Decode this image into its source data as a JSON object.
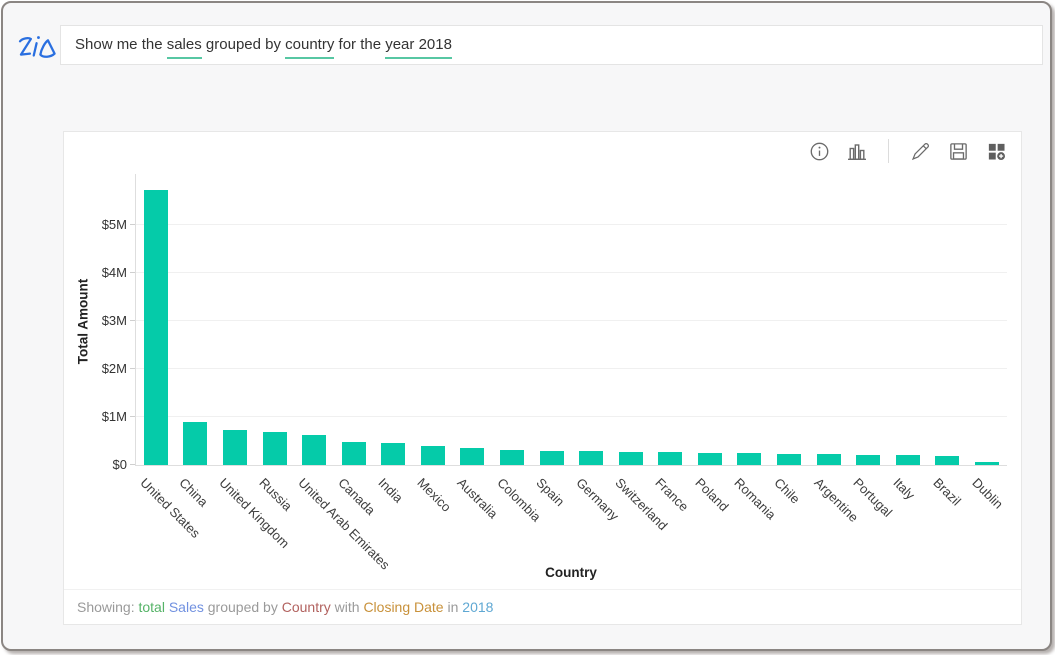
{
  "query_bar": {
    "logo_name": "Zia",
    "segments": [
      {
        "text": "Show me the ",
        "underlined": false
      },
      {
        "text": "sales",
        "underlined": true
      },
      {
        "text": " grouped by ",
        "underlined": false
      },
      {
        "text": "country",
        "underlined": true
      },
      {
        "text": " for the ",
        "underlined": false
      },
      {
        "text": "year 2018",
        "underlined": true
      }
    ]
  },
  "toolbar": {
    "icons": [
      "info-icon",
      "bar-chart-icon",
      "divider",
      "edit-pencil-icon",
      "save-icon",
      "add-to-dashboard-icon"
    ]
  },
  "chart_data": {
    "type": "bar",
    "title": "",
    "xlabel": "Country",
    "ylabel": "Total Amount",
    "bar_color": "#05cba9",
    "grid": true,
    "ylim": [
      0,
      6080000
    ],
    "y_ticks": [
      "$0",
      "$1M",
      "$2M",
      "$3M",
      "$4M",
      "$5M"
    ],
    "categories": [
      "United States",
      "China",
      "United Kingdom",
      "Russia",
      "United Arab Emirates",
      "Canada",
      "India",
      "Mexico",
      "Australia",
      "Colombia",
      "Spain",
      "Germany",
      "Switzerland",
      "France",
      "Poland",
      "Romania",
      "Chile",
      "Argentine",
      "Portugal",
      "Italy",
      "Brazil",
      "Dublin"
    ],
    "values": [
      5730000,
      900000,
      730000,
      690000,
      630000,
      470000,
      450000,
      390000,
      350000,
      320000,
      300000,
      290000,
      280000,
      270000,
      260000,
      250000,
      230000,
      225000,
      215000,
      205000,
      190000,
      60000
    ]
  },
  "footer": {
    "segments": [
      {
        "text": "Showing: ",
        "color": "#9a9a9a"
      },
      {
        "text": "total ",
        "color": "#55b367"
      },
      {
        "text": "Sales",
        "color": "#7191e0"
      },
      {
        "text": " grouped by ",
        "color": "#9a9a9a"
      },
      {
        "text": "Country",
        "color": "#b2625f"
      },
      {
        "text": " with ",
        "color": "#9a9a9a"
      },
      {
        "text": "Closing Date",
        "color": "#c8913a"
      },
      {
        "text": " in ",
        "color": "#9a9a9a"
      },
      {
        "text": "2018",
        "color": "#5fa8d3"
      }
    ]
  }
}
